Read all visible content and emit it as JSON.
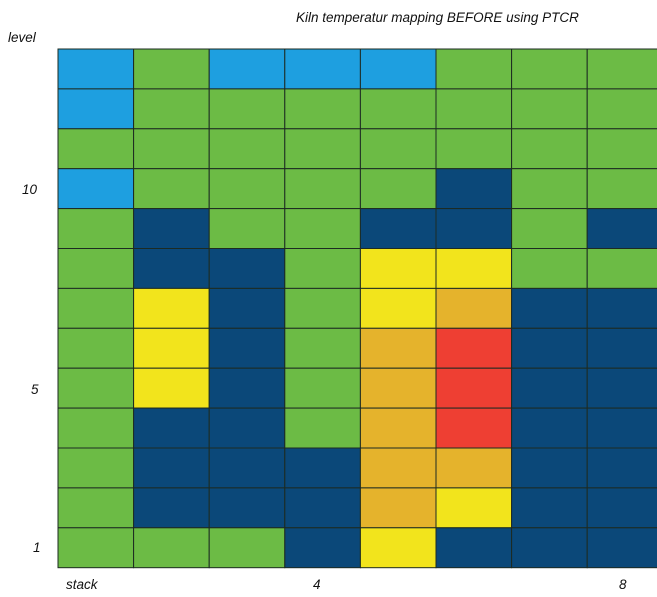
{
  "chart_data": {
    "type": "heatmap",
    "title": "Kiln temperatur mapping BEFORE using PTCR",
    "ylabel": "level",
    "xlabel": "stack",
    "x_ticks": [
      {
        "label": "4",
        "col": 4
      },
      {
        "label": "8",
        "col": 8
      }
    ],
    "y_ticks": [
      {
        "label": "10",
        "level": 10
      },
      {
        "label": "5",
        "level": 5
      },
      {
        "label": "1",
        "level": 1
      }
    ],
    "levels": 13,
    "stacks": 8,
    "color_key": {
      "L": "#1e9fe0",
      "G": "#6cbb45",
      "N": "#0b4879",
      "Y": "#f2e41c",
      "O": "#e5b32c",
      "R": "#ee3f33"
    },
    "rows_top_to_bottom": [
      [
        "L",
        "G",
        "L",
        "L",
        "L",
        "G",
        "G",
        "G"
      ],
      [
        "L",
        "G",
        "G",
        "G",
        "G",
        "G",
        "G",
        "G"
      ],
      [
        "G",
        "G",
        "G",
        "G",
        "G",
        "G",
        "G",
        "G"
      ],
      [
        "L",
        "G",
        "G",
        "G",
        "G",
        "N",
        "G",
        "G"
      ],
      [
        "G",
        "N",
        "G",
        "G",
        "N",
        "N",
        "G",
        "N"
      ],
      [
        "G",
        "N",
        "N",
        "G",
        "Y",
        "Y",
        "G",
        "G"
      ],
      [
        "G",
        "Y",
        "N",
        "G",
        "Y",
        "O",
        "N",
        "N"
      ],
      [
        "G",
        "Y",
        "N",
        "G",
        "O",
        "R",
        "N",
        "N"
      ],
      [
        "G",
        "Y",
        "N",
        "G",
        "O",
        "R",
        "N",
        "N"
      ],
      [
        "G",
        "N",
        "N",
        "G",
        "O",
        "R",
        "N",
        "N"
      ],
      [
        "G",
        "N",
        "N",
        "N",
        "O",
        "O",
        "N",
        "N"
      ],
      [
        "G",
        "N",
        "N",
        "N",
        "O",
        "Y",
        "N",
        "N"
      ],
      [
        "G",
        "G",
        "G",
        "N",
        "Y",
        "N",
        "N",
        "N"
      ]
    ]
  }
}
